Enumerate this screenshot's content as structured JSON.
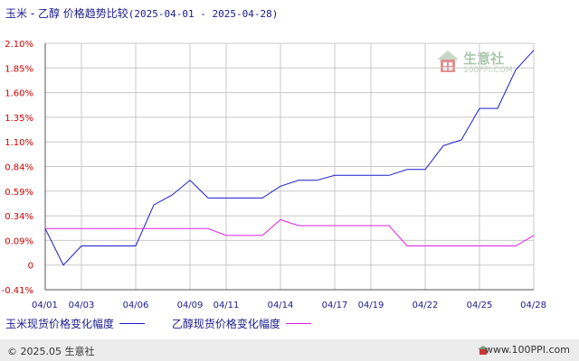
{
  "title": {
    "main": "玉米 - 乙醇 价格趋势比较",
    "range": "(2025-04-01 - 2025-04-28)"
  },
  "colors": {
    "corn": "#1c1ccc",
    "ethanol": "#e020e0",
    "grid": "#c8c8c8",
    "axis": "#555555",
    "tick_text": "#cc0000",
    "x_text": "#1a1a8c"
  },
  "footer": {
    "copyright": "© 2025.05 生意社",
    "site": "www.100PPI.com"
  },
  "watermark": {
    "name": "生意社",
    "url": "100PPI.COM"
  },
  "icons": {
    "watermark": "house-logo-icon",
    "footer_logo": "house-logo-icon"
  },
  "chart_data": {
    "type": "line",
    "title": "玉米 - 乙醇 价格趋势比较",
    "x": [
      "04/01",
      "04/02",
      "04/03",
      "04/04",
      "04/05",
      "04/06",
      "04/07",
      "04/08",
      "04/09",
      "04/10",
      "04/11",
      "04/12",
      "04/13",
      "04/14",
      "04/15",
      "04/16",
      "04/17",
      "04/18",
      "04/19",
      "04/20",
      "04/21",
      "04/22",
      "04/23",
      "04/24",
      "04/25",
      "04/26",
      "04/27",
      "04/28"
    ],
    "x_ticks": [
      "04/01",
      "04/03",
      "04/06",
      "04/09",
      "04/11",
      "04/14",
      "04/17",
      "04/19",
      "04/22",
      "04/25",
      "04/28"
    ],
    "y_ticks": [
      "2.10%",
      "1.85%",
      "1.60%",
      "1.35%",
      "1.10%",
      "0.84%",
      "0.59%",
      "0.34%",
      "0.09%",
      "0",
      "-0.41%"
    ],
    "ylim": [
      -0.41,
      2.1
    ],
    "grid": true,
    "legend_position": "bottom",
    "series": [
      {
        "name": "玉米现货价格变化幅度",
        "values": [
          0.21,
          0.0,
          0.07,
          0.07,
          0.07,
          0.07,
          0.45,
          0.55,
          0.7,
          0.52,
          0.52,
          0.52,
          0.52,
          0.64,
          0.7,
          0.7,
          0.75,
          0.75,
          0.75,
          0.75,
          0.81,
          0.81,
          1.06,
          1.12,
          1.44,
          1.44,
          1.83,
          2.03
        ]
      },
      {
        "name": "乙醇现货价格变化幅度",
        "values": [
          0.21,
          0.21,
          0.21,
          0.21,
          0.21,
          0.21,
          0.21,
          0.21,
          0.21,
          0.21,
          0.14,
          0.14,
          0.14,
          0.3,
          0.24,
          0.24,
          0.24,
          0.24,
          0.24,
          0.24,
          0.07,
          0.07,
          0.07,
          0.07,
          0.07,
          0.07,
          0.07,
          0.14
        ]
      }
    ]
  }
}
